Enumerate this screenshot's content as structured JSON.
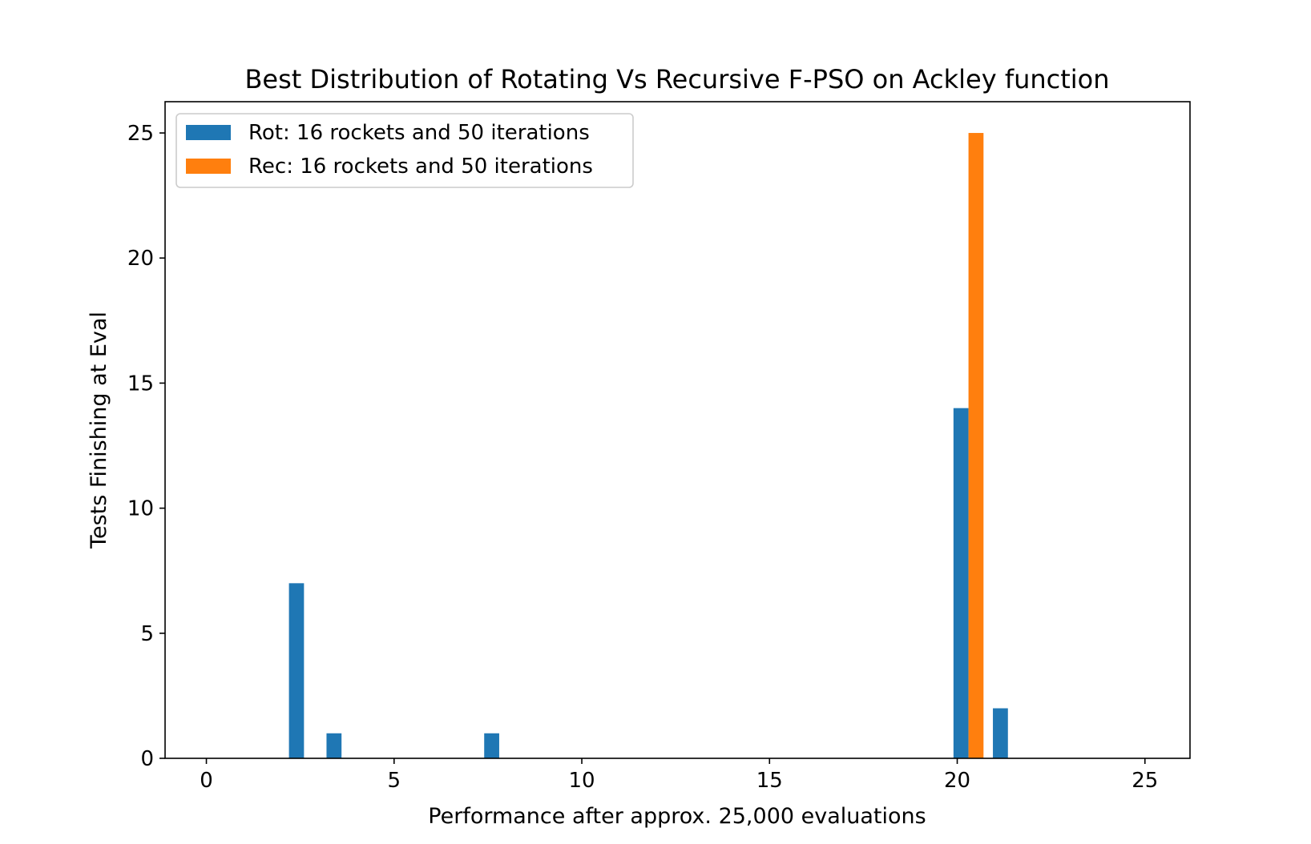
{
  "chart_data": {
    "type": "bar",
    "title": "Best Distribution of Rotating Vs Recursive F-PSO on Ackley function",
    "xlabel": "Performance after approx. 25,000 evaluations",
    "ylabel": "Tests Finishing at Eval",
    "xlim": [
      -1.1,
      26.2
    ],
    "ylim": [
      0,
      26.25
    ],
    "xticks": [
      0,
      5,
      10,
      15,
      20,
      25
    ],
    "yticks": [
      0,
      5,
      10,
      15,
      20,
      25
    ],
    "grid": false,
    "legend_position": "upper-left",
    "series": [
      {
        "name": "Rot: 16 rockets and 50 iterations",
        "color": "#1f77b4",
        "bars": [
          {
            "x_start": 2.2,
            "x_end": 2.6,
            "value": 7
          },
          {
            "x_start": 3.2,
            "x_end": 3.6,
            "value": 1
          },
          {
            "x_start": 7.4,
            "x_end": 7.8,
            "value": 1
          },
          {
            "x_start": 19.9,
            "x_end": 20.3,
            "value": 14
          },
          {
            "x_start": 20.95,
            "x_end": 21.35,
            "value": 2
          }
        ]
      },
      {
        "name": "Rec: 16 rockets and 50 iterations",
        "color": "#ff7f0e",
        "bars": [
          {
            "x_start": 20.3,
            "x_end": 20.7,
            "value": 25
          }
        ]
      }
    ]
  }
}
